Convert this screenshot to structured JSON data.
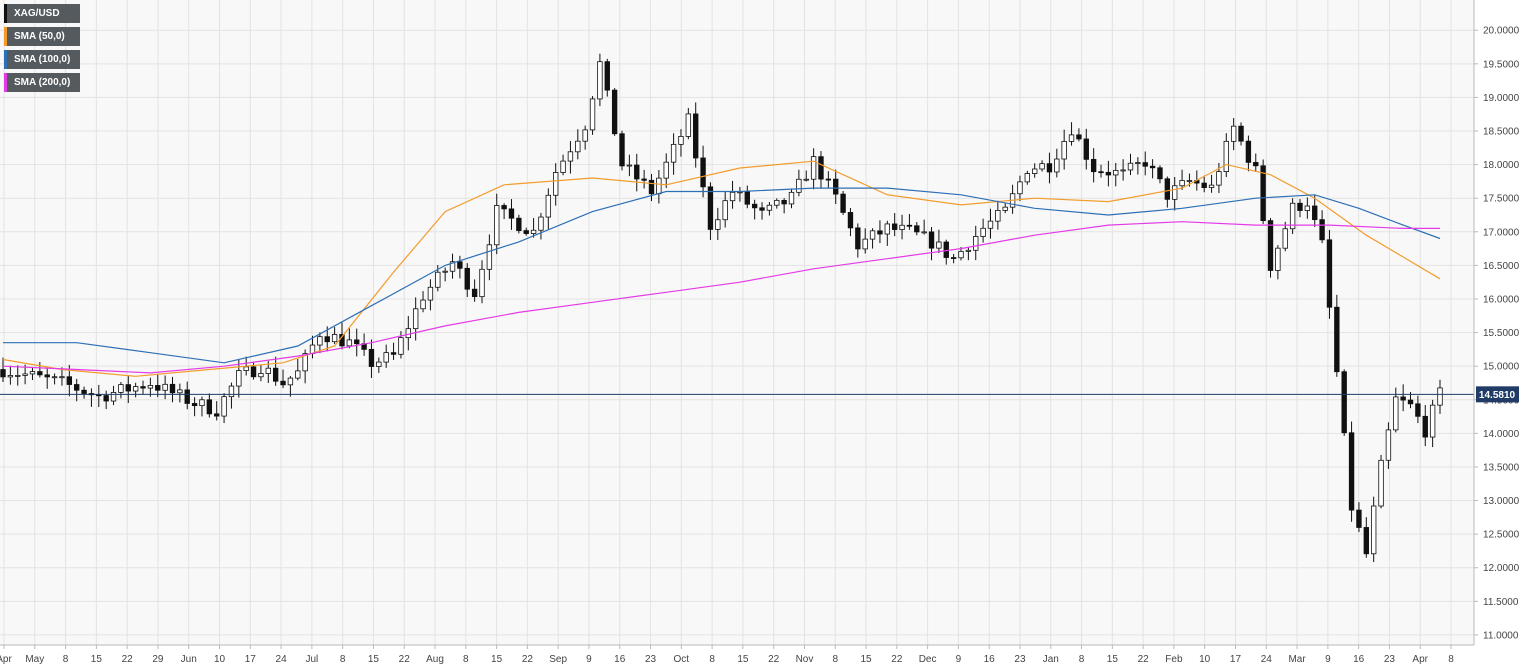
{
  "legend": [
    {
      "label": "XAG/USD",
      "color": "#111111"
    },
    {
      "label": "SMA (50,0)",
      "color": "#f39c2c"
    },
    {
      "label": "SMA (100,0)",
      "color": "#2d6fb5"
    },
    {
      "label": "SMA (200,0)",
      "color": "#e43be8"
    }
  ],
  "current_price": {
    "label": "14.5810",
    "value": 14.581,
    "color": "#1f3b66"
  },
  "chart_data": {
    "type": "candlestick",
    "symbol": "XAG/USD",
    "ylim": [
      10.85,
      20.45
    ],
    "y_ticks": [
      "11.0000",
      "11.5000",
      "12.0000",
      "12.5000",
      "13.0000",
      "13.5000",
      "14.0000",
      "14.5000",
      "15.0000",
      "15.5000",
      "16.0000",
      "16.5000",
      "17.0000",
      "17.5000",
      "18.0000",
      "18.5000",
      "19.0000",
      "19.5000",
      "20.0000"
    ],
    "x_ticks": [
      "Apr",
      "May",
      "8",
      "15",
      "22",
      "29",
      "Jun",
      "10",
      "17",
      "24",
      "Jul",
      "8",
      "15",
      "22",
      "Aug",
      "8",
      "15",
      "22",
      "Sep",
      "9",
      "16",
      "23",
      "Oct",
      "8",
      "15",
      "22",
      "Nov",
      "8",
      "15",
      "22",
      "Dec",
      "9",
      "16",
      "23",
      "Jan",
      "8",
      "15",
      "22",
      "Feb",
      "10",
      "17",
      "24",
      "Mar",
      "9",
      "16",
      "23",
      "Apr",
      "8"
    ],
    "grid": true,
    "close_path": [
      [
        0,
        14.95
      ],
      [
        8,
        14.75
      ],
      [
        13,
        14.55
      ],
      [
        20,
        14.75
      ],
      [
        26,
        14.45
      ],
      [
        29,
        14.35
      ],
      [
        32,
        14.85
      ],
      [
        35,
        15.0
      ],
      [
        38,
        14.75
      ],
      [
        40,
        14.9
      ],
      [
        43,
        15.5
      ],
      [
        47,
        15.35
      ],
      [
        50,
        15.05
      ],
      [
        53,
        15.15
      ],
      [
        57,
        16.05
      ],
      [
        61,
        16.55
      ],
      [
        64,
        16.1
      ],
      [
        67,
        17.3
      ],
      [
        72,
        17.0
      ],
      [
        75,
        17.9
      ],
      [
        79,
        18.6
      ],
      [
        81,
        19.5
      ],
      [
        84,
        18.0
      ],
      [
        88,
        17.6
      ],
      [
        90,
        18.0
      ],
      [
        93,
        18.65
      ],
      [
        96,
        17.1
      ],
      [
        99,
        17.6
      ],
      [
        103,
        17.25
      ],
      [
        107,
        17.5
      ],
      [
        110,
        18.05
      ],
      [
        113,
        17.5
      ],
      [
        116,
        16.8
      ],
      [
        120,
        17.05
      ],
      [
        123,
        17.0
      ],
      [
        126,
        16.85
      ],
      [
        129,
        16.6
      ],
      [
        133,
        17.05
      ],
      [
        136,
        17.3
      ],
      [
        139,
        17.95
      ],
      [
        142,
        18.0
      ],
      [
        145,
        18.55
      ],
      [
        148,
        17.95
      ],
      [
        152,
        17.85
      ],
      [
        155,
        18.05
      ],
      [
        158,
        17.55
      ],
      [
        161,
        17.75
      ],
      [
        164,
        17.65
      ],
      [
        167,
        18.55
      ],
      [
        170,
        17.9
      ],
      [
        172,
        16.5
      ],
      [
        175,
        17.35
      ],
      [
        177,
        17.45
      ],
      [
        179,
        16.8
      ],
      [
        181,
        14.9
      ],
      [
        183,
        12.9
      ],
      [
        185,
        12.2
      ],
      [
        187,
        13.5
      ],
      [
        189,
        14.5
      ],
      [
        191,
        14.4
      ],
      [
        193,
        14.05
      ],
      [
        195,
        14.58
      ]
    ],
    "sma50": [
      [
        0,
        15.1
      ],
      [
        8,
        14.95
      ],
      [
        18,
        14.85
      ],
      [
        28,
        14.95
      ],
      [
        38,
        15.05
      ],
      [
        45,
        15.3
      ],
      [
        53,
        16.4
      ],
      [
        60,
        17.3
      ],
      [
        68,
        17.7
      ],
      [
        80,
        17.8
      ],
      [
        90,
        17.7
      ],
      [
        100,
        17.95
      ],
      [
        110,
        18.05
      ],
      [
        120,
        17.55
      ],
      [
        130,
        17.4
      ],
      [
        140,
        17.5
      ],
      [
        150,
        17.45
      ],
      [
        160,
        17.65
      ],
      [
        166,
        18.0
      ],
      [
        172,
        17.85
      ],
      [
        178,
        17.5
      ],
      [
        185,
        16.95
      ],
      [
        195,
        16.3
      ]
    ],
    "sma100": [
      [
        0,
        15.35
      ],
      [
        10,
        15.35
      ],
      [
        20,
        15.2
      ],
      [
        30,
        15.05
      ],
      [
        40,
        15.3
      ],
      [
        50,
        15.9
      ],
      [
        60,
        16.5
      ],
      [
        70,
        16.85
      ],
      [
        80,
        17.3
      ],
      [
        90,
        17.6
      ],
      [
        100,
        17.6
      ],
      [
        110,
        17.65
      ],
      [
        120,
        17.65
      ],
      [
        130,
        17.55
      ],
      [
        140,
        17.35
      ],
      [
        150,
        17.25
      ],
      [
        160,
        17.35
      ],
      [
        170,
        17.5
      ],
      [
        178,
        17.55
      ],
      [
        184,
        17.35
      ],
      [
        190,
        17.1
      ],
      [
        195,
        16.9
      ]
    ],
    "sma200": [
      [
        0,
        15.0
      ],
      [
        10,
        14.95
      ],
      [
        20,
        14.9
      ],
      [
        30,
        15.0
      ],
      [
        40,
        15.15
      ],
      [
        50,
        15.35
      ],
      [
        60,
        15.6
      ],
      [
        70,
        15.8
      ],
      [
        80,
        15.95
      ],
      [
        90,
        16.1
      ],
      [
        100,
        16.25
      ],
      [
        110,
        16.45
      ],
      [
        120,
        16.6
      ],
      [
        130,
        16.75
      ],
      [
        140,
        16.95
      ],
      [
        150,
        17.1
      ],
      [
        160,
        17.15
      ],
      [
        170,
        17.1
      ],
      [
        180,
        17.1
      ],
      [
        190,
        17.05
      ],
      [
        195,
        17.05
      ]
    ]
  }
}
